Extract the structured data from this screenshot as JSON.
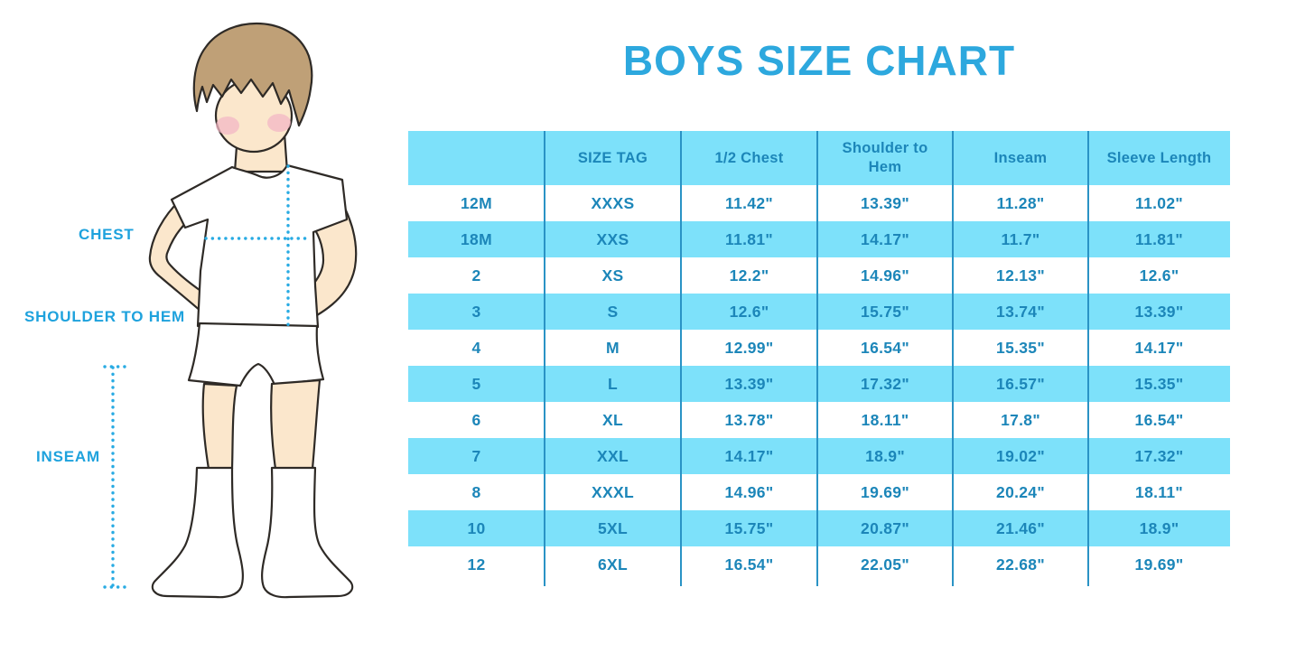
{
  "title": "BOYS SIZE CHART",
  "figure": {
    "labels": {
      "chest": "CHEST",
      "shoulder_to_hem": "SHOULDER TO HEM",
      "inseam": "INSEAM"
    },
    "illustration": "cartoon boy, hands on hips, white t-shirt, white shorts, knee socks, with dotted measurement guide lines"
  },
  "chart_data": {
    "type": "table",
    "title": "BOYS SIZE CHART",
    "columns": [
      "",
      "SIZE TAG",
      "1/2 Chest",
      "Shoulder to Hem",
      "Inseam",
      "Sleeve Length"
    ],
    "rows": [
      [
        "12M",
        "XXXS",
        "11.42\"",
        "13.39\"",
        "11.28\"",
        "11.02\""
      ],
      [
        "18M",
        "XXS",
        "11.81\"",
        "14.17\"",
        "11.7\"",
        "11.81\""
      ],
      [
        "2",
        "XS",
        "12.2\"",
        "14.96\"",
        "12.13\"",
        "12.6\""
      ],
      [
        "3",
        "S",
        "12.6\"",
        "15.75\"",
        "13.74\"",
        "13.39\""
      ],
      [
        "4",
        "M",
        "12.99\"",
        "16.54\"",
        "15.35\"",
        "14.17\""
      ],
      [
        "5",
        "L",
        "13.39\"",
        "17.32\"",
        "16.57\"",
        "15.35\""
      ],
      [
        "6",
        "XL",
        "13.78\"",
        "18.11\"",
        "17.8\"",
        "16.54\""
      ],
      [
        "7",
        "XXL",
        "14.17\"",
        "18.9\"",
        "19.02\"",
        "17.32\""
      ],
      [
        "8",
        "XXXL",
        "14.96\"",
        "19.69\"",
        "20.24\"",
        "18.11\""
      ],
      [
        "10",
        "5XL",
        "15.75\"",
        "20.87\"",
        "21.46\"",
        "18.9\""
      ],
      [
        "12",
        "6XL",
        "16.54\"",
        "22.05\"",
        "22.68\"",
        "19.69\""
      ]
    ],
    "layout": {
      "grid": "off",
      "striping": "alternating white and light blue rows, header row light blue"
    }
  },
  "colors": {
    "band_blue": "#7DE1FA",
    "table_text": "#1C86B9",
    "column_line": "#2A93C5",
    "title_blue": "#2DA8DE",
    "label_cyan": "#1EA2DD",
    "dotted_line": "#29ABE3",
    "skin": "#FBE7CC",
    "hair": "#BFA077",
    "outline": "#2E2A26",
    "cheek": "#F3B8C6"
  }
}
